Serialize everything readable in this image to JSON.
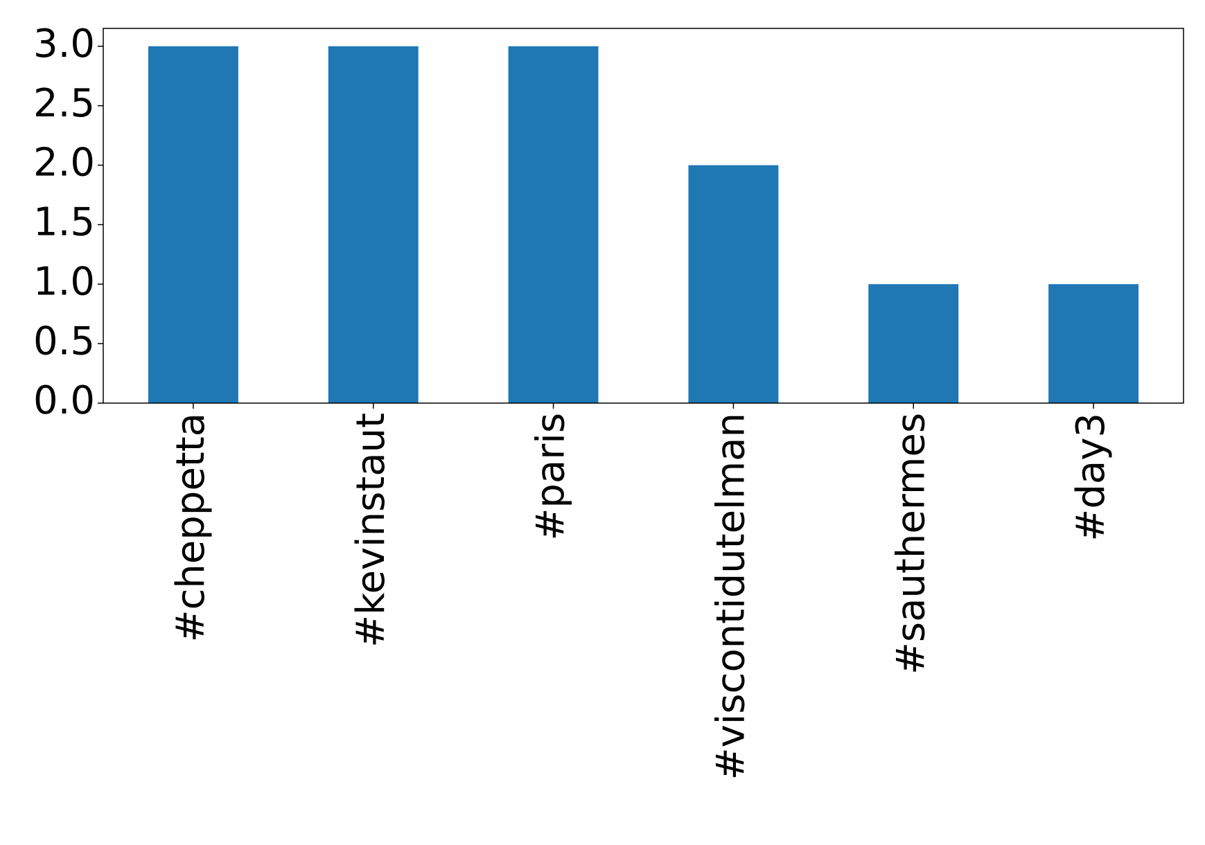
{
  "chart_data": {
    "type": "bar",
    "categories": [
      "#cheppetta",
      "#kevinstaut",
      "#paris",
      "#viscontidutelman",
      "#sauthermes",
      "#day3"
    ],
    "values": [
      3,
      3,
      3,
      2,
      1,
      1
    ],
    "color": "#1f77b4",
    "ylim": [
      0,
      3.15
    ],
    "yticks": [
      {
        "value": 0,
        "label": "0.0"
      },
      {
        "value": 0.5,
        "label": "0.5"
      },
      {
        "value": 1,
        "label": "1.0"
      },
      {
        "value": 1.5,
        "label": "1.5"
      },
      {
        "value": 2,
        "label": "2.0"
      },
      {
        "value": 2.5,
        "label": "2.5"
      },
      {
        "value": 3,
        "label": "3.0"
      }
    ],
    "grid": false
  }
}
